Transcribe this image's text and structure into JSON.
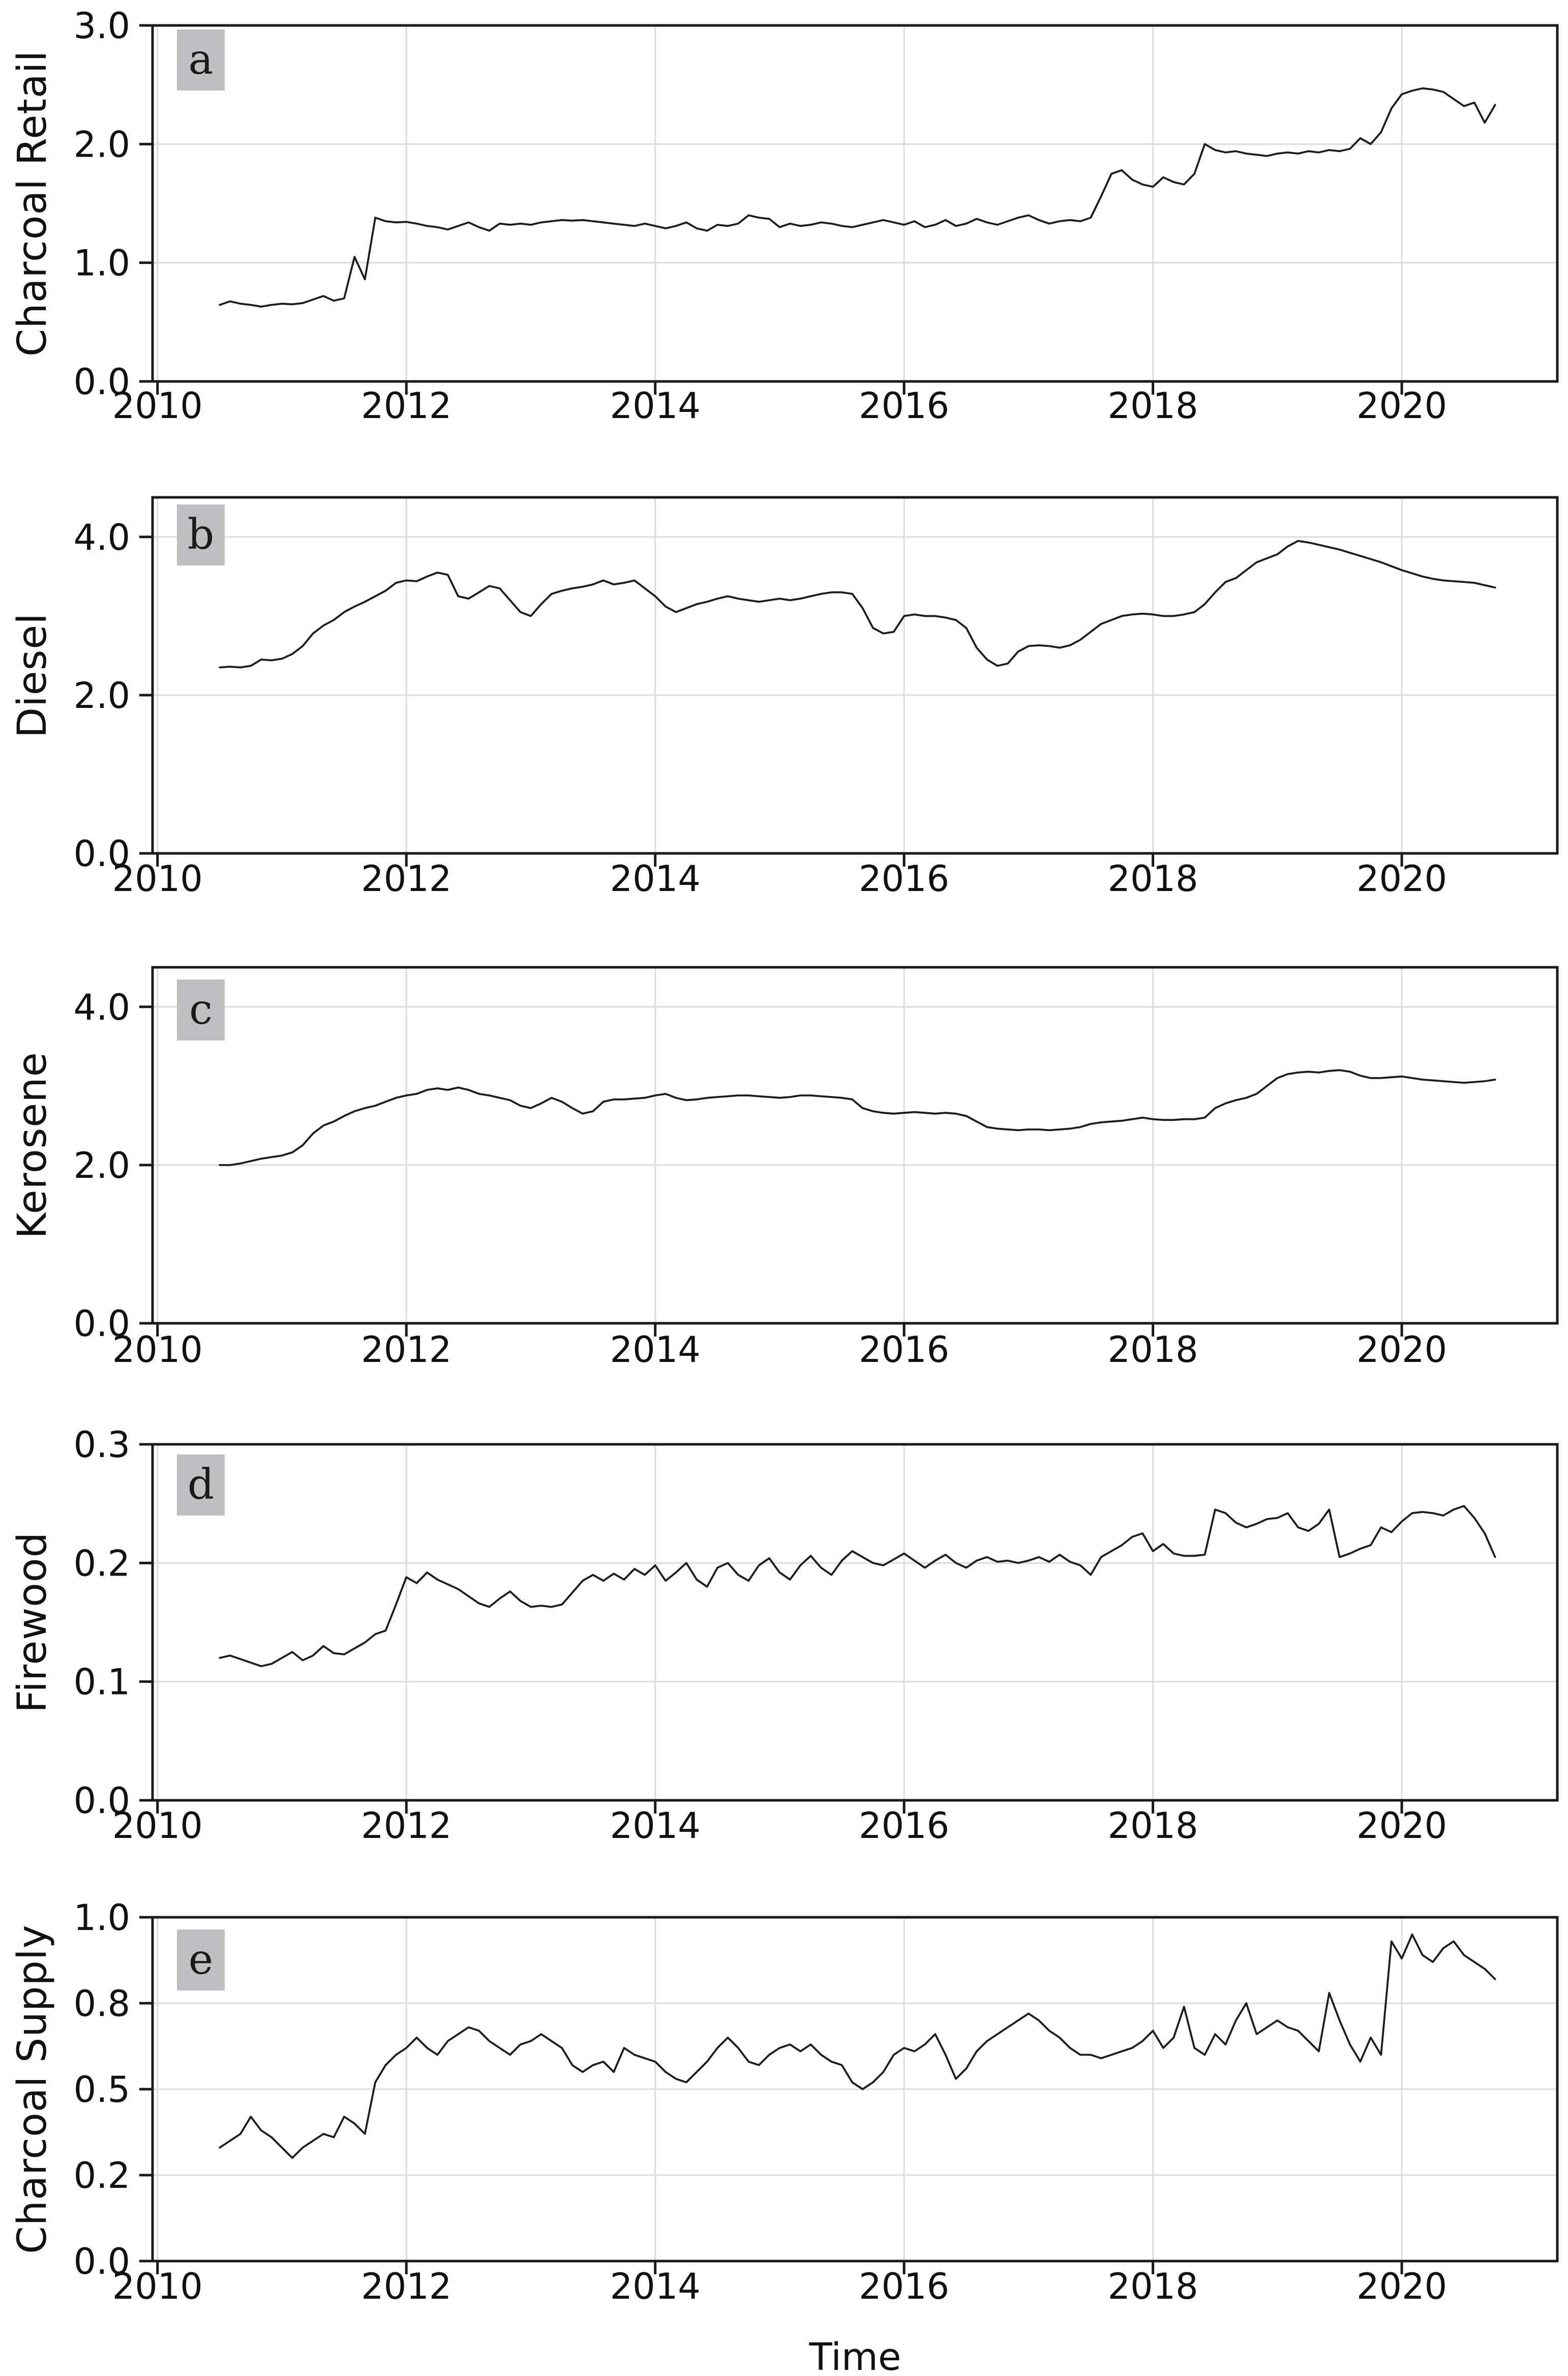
{
  "figure": {
    "background": "#ffffff",
    "line_color": "#1c1c1c",
    "grid_color": "#dcdcdc",
    "spine_color": "#1a1a1a",
    "tick_text_color": "#111111",
    "letter_box_bg": "#bfbfc1",
    "xlabel": "Time",
    "x_ticks": [
      2010,
      2012,
      2014,
      2016,
      2018,
      2020
    ],
    "x_tick_labels": [
      "2010",
      "2012",
      "2014",
      "2016",
      "2018",
      "2020"
    ],
    "x_domain": [
      2009.96,
      2021.25
    ]
  },
  "chart_data": [
    {
      "type": "line",
      "panel_letter": "a",
      "ylabel": "Charcoal Retail",
      "ylim": [
        0,
        3.0
      ],
      "yticks": [
        {
          "v": 0.0,
          "label": "0.0"
        },
        {
          "v": 1.0,
          "label": "1.0"
        },
        {
          "v": 2.0,
          "label": "2.0"
        },
        {
          "v": 3.0,
          "label": "3.0"
        }
      ],
      "x_start": 2010.5,
      "x_step": 0.0833333,
      "values": [
        0.645,
        0.675,
        0.655,
        0.645,
        0.63,
        0.645,
        0.655,
        0.65,
        0.66,
        0.69,
        0.72,
        0.68,
        0.7,
        1.05,
        0.86,
        1.38,
        1.35,
        1.34,
        1.345,
        1.33,
        1.31,
        1.3,
        1.28,
        1.31,
        1.34,
        1.3,
        1.27,
        1.33,
        1.32,
        1.33,
        1.32,
        1.34,
        1.35,
        1.36,
        1.355,
        1.36,
        1.35,
        1.34,
        1.33,
        1.32,
        1.31,
        1.33,
        1.31,
        1.29,
        1.31,
        1.34,
        1.29,
        1.27,
        1.32,
        1.31,
        1.33,
        1.4,
        1.38,
        1.37,
        1.3,
        1.33,
        1.31,
        1.32,
        1.34,
        1.33,
        1.31,
        1.3,
        1.32,
        1.34,
        1.36,
        1.34,
        1.32,
        1.35,
        1.3,
        1.32,
        1.36,
        1.31,
        1.33,
        1.37,
        1.34,
        1.32,
        1.35,
        1.38,
        1.4,
        1.36,
        1.33,
        1.35,
        1.36,
        1.35,
        1.38,
        1.56,
        1.75,
        1.78,
        1.7,
        1.66,
        1.64,
        1.72,
        1.68,
        1.66,
        1.75,
        2.0,
        1.95,
        1.93,
        1.94,
        1.92,
        1.91,
        1.9,
        1.92,
        1.93,
        1.92,
        1.94,
        1.93,
        1.95,
        1.94,
        1.96,
        2.05,
        2.0,
        2.1,
        2.3,
        2.42,
        2.45,
        2.47,
        2.46,
        2.44,
        2.38,
        2.32,
        2.35,
        2.18,
        2.33
      ]
    },
    {
      "type": "line",
      "panel_letter": "b",
      "ylabel": "Diesel",
      "ylim": [
        0,
        4.5
      ],
      "yticks": [
        {
          "v": 0.0,
          "label": "0.0"
        },
        {
          "v": 2.0,
          "label": "2.0"
        },
        {
          "v": 4.0,
          "label": "4.0"
        }
      ],
      "x_start": 2010.5,
      "x_step": 0.0833333,
      "values": [
        2.35,
        2.36,
        2.35,
        2.37,
        2.45,
        2.44,
        2.46,
        2.52,
        2.62,
        2.78,
        2.88,
        2.95,
        3.05,
        3.12,
        3.18,
        3.25,
        3.32,
        3.42,
        3.45,
        3.44,
        3.5,
        3.55,
        3.52,
        3.25,
        3.22,
        3.3,
        3.38,
        3.35,
        3.2,
        3.05,
        3.0,
        3.15,
        3.28,
        3.32,
        3.35,
        3.37,
        3.4,
        3.45,
        3.4,
        3.42,
        3.45,
        3.35,
        3.25,
        3.12,
        3.05,
        3.1,
        3.15,
        3.18,
        3.22,
        3.25,
        3.22,
        3.2,
        3.18,
        3.2,
        3.22,
        3.2,
        3.22,
        3.25,
        3.28,
        3.3,
        3.3,
        3.28,
        3.1,
        2.85,
        2.78,
        2.8,
        3.0,
        3.02,
        3.0,
        3.0,
        2.98,
        2.95,
        2.85,
        2.6,
        2.45,
        2.37,
        2.4,
        2.55,
        2.62,
        2.63,
        2.62,
        2.6,
        2.63,
        2.7,
        2.8,
        2.9,
        2.95,
        3.0,
        3.02,
        3.03,
        3.02,
        3.0,
        3.0,
        3.02,
        3.05,
        3.15,
        3.3,
        3.43,
        3.48,
        3.58,
        3.68,
        3.73,
        3.78,
        3.88,
        3.95,
        3.93,
        3.9,
        3.87,
        3.84,
        3.8,
        3.76,
        3.72,
        3.68,
        3.63,
        3.58,
        3.54,
        3.5,
        3.47,
        3.45,
        3.44,
        3.43,
        3.42,
        3.39,
        3.36
      ]
    },
    {
      "type": "line",
      "panel_letter": "c",
      "ylabel": "Kerosene",
      "ylim": [
        0,
        4.5
      ],
      "yticks": [
        {
          "v": 0.0,
          "label": "0.0"
        },
        {
          "v": 2.0,
          "label": "2.0"
        },
        {
          "v": 4.0,
          "label": "4.0"
        }
      ],
      "x_start": 2010.5,
      "x_step": 0.0833333,
      "values": [
        2.0,
        2.0,
        2.02,
        2.05,
        2.08,
        2.1,
        2.12,
        2.16,
        2.25,
        2.4,
        2.5,
        2.55,
        2.62,
        2.68,
        2.72,
        2.75,
        2.8,
        2.85,
        2.88,
        2.9,
        2.95,
        2.97,
        2.95,
        2.98,
        2.95,
        2.9,
        2.88,
        2.85,
        2.82,
        2.75,
        2.72,
        2.78,
        2.85,
        2.8,
        2.72,
        2.65,
        2.68,
        2.8,
        2.83,
        2.83,
        2.84,
        2.85,
        2.88,
        2.9,
        2.85,
        2.82,
        2.83,
        2.85,
        2.86,
        2.87,
        2.88,
        2.88,
        2.87,
        2.86,
        2.85,
        2.86,
        2.88,
        2.88,
        2.87,
        2.86,
        2.85,
        2.83,
        2.72,
        2.68,
        2.66,
        2.65,
        2.66,
        2.67,
        2.66,
        2.65,
        2.66,
        2.65,
        2.62,
        2.55,
        2.48,
        2.46,
        2.45,
        2.44,
        2.45,
        2.45,
        2.44,
        2.45,
        2.46,
        2.48,
        2.52,
        2.54,
        2.55,
        2.56,
        2.58,
        2.6,
        2.58,
        2.57,
        2.57,
        2.58,
        2.58,
        2.6,
        2.72,
        2.78,
        2.82,
        2.85,
        2.9,
        3.0,
        3.1,
        3.15,
        3.17,
        3.18,
        3.17,
        3.19,
        3.2,
        3.18,
        3.13,
        3.1,
        3.1,
        3.11,
        3.12,
        3.1,
        3.08,
        3.07,
        3.06,
        3.05,
        3.04,
        3.05,
        3.06,
        3.08
      ]
    },
    {
      "type": "line",
      "panel_letter": "d",
      "ylabel": "Firewood",
      "ylim": [
        0,
        0.3
      ],
      "yticks": [
        {
          "v": 0.0,
          "label": "0.0"
        },
        {
          "v": 0.1,
          "label": "0.1"
        },
        {
          "v": 0.2,
          "label": "0.2"
        },
        {
          "v": 0.3,
          "label": "0.3"
        }
      ],
      "x_start": 2010.5,
      "x_step": 0.0833333,
      "values": [
        0.12,
        0.122,
        0.119,
        0.116,
        0.113,
        0.115,
        0.12,
        0.125,
        0.118,
        0.122,
        0.13,
        0.124,
        0.123,
        0.128,
        0.133,
        0.14,
        0.143,
        0.165,
        0.188,
        0.183,
        0.192,
        0.186,
        0.182,
        0.178,
        0.172,
        0.166,
        0.163,
        0.17,
        0.176,
        0.168,
        0.163,
        0.164,
        0.163,
        0.165,
        0.175,
        0.185,
        0.19,
        0.185,
        0.191,
        0.186,
        0.195,
        0.19,
        0.198,
        0.185,
        0.192,
        0.2,
        0.186,
        0.18,
        0.196,
        0.2,
        0.19,
        0.185,
        0.198,
        0.204,
        0.192,
        0.186,
        0.198,
        0.206,
        0.196,
        0.19,
        0.202,
        0.21,
        0.205,
        0.2,
        0.198,
        0.203,
        0.208,
        0.202,
        0.196,
        0.202,
        0.207,
        0.2,
        0.196,
        0.202,
        0.205,
        0.201,
        0.202,
        0.2,
        0.202,
        0.205,
        0.201,
        0.207,
        0.201,
        0.198,
        0.19,
        0.205,
        0.21,
        0.215,
        0.222,
        0.225,
        0.21,
        0.216,
        0.208,
        0.206,
        0.206,
        0.207,
        0.245,
        0.242,
        0.234,
        0.23,
        0.233,
        0.237,
        0.238,
        0.242,
        0.23,
        0.227,
        0.233,
        0.245,
        0.205,
        0.208,
        0.212,
        0.215,
        0.23,
        0.226,
        0.235,
        0.242,
        0.243,
        0.242,
        0.24,
        0.245,
        0.248,
        0.238,
        0.225,
        0.205
      ]
    },
    {
      "type": "line",
      "panel_letter": "e",
      "ylabel": "Charcoal Supply",
      "ylim": [
        0,
        1.0
      ],
      "yticks": [
        {
          "v": 0.0,
          "label": "0.0"
        },
        {
          "v": 0.25,
          "label": "0.2"
        },
        {
          "v": 0.5,
          "label": "0.5"
        },
        {
          "v": 0.75,
          "label": "0.8"
        },
        {
          "v": 1.0,
          "label": "1.0"
        }
      ],
      "x_start": 2010.5,
      "x_step": 0.0833333,
      "values": [
        0.33,
        0.35,
        0.37,
        0.42,
        0.38,
        0.36,
        0.33,
        0.3,
        0.33,
        0.35,
        0.37,
        0.36,
        0.42,
        0.4,
        0.37,
        0.52,
        0.57,
        0.6,
        0.62,
        0.65,
        0.62,
        0.6,
        0.64,
        0.66,
        0.68,
        0.67,
        0.64,
        0.62,
        0.6,
        0.63,
        0.64,
        0.66,
        0.64,
        0.62,
        0.57,
        0.55,
        0.57,
        0.58,
        0.55,
        0.62,
        0.6,
        0.59,
        0.58,
        0.55,
        0.53,
        0.52,
        0.55,
        0.58,
        0.62,
        0.65,
        0.62,
        0.58,
        0.57,
        0.6,
        0.62,
        0.63,
        0.61,
        0.63,
        0.6,
        0.58,
        0.57,
        0.52,
        0.5,
        0.52,
        0.55,
        0.6,
        0.62,
        0.61,
        0.63,
        0.66,
        0.6,
        0.53,
        0.56,
        0.61,
        0.64,
        0.66,
        0.68,
        0.7,
        0.72,
        0.7,
        0.67,
        0.65,
        0.62,
        0.6,
        0.6,
        0.59,
        0.6,
        0.61,
        0.62,
        0.64,
        0.67,
        0.62,
        0.65,
        0.74,
        0.62,
        0.6,
        0.66,
        0.63,
        0.7,
        0.75,
        0.66,
        0.68,
        0.7,
        0.68,
        0.67,
        0.64,
        0.61,
        0.78,
        0.7,
        0.63,
        0.58,
        0.65,
        0.6,
        0.93,
        0.88,
        0.95,
        0.89,
        0.87,
        0.91,
        0.93,
        0.89,
        0.87,
        0.85,
        0.82
      ]
    }
  ]
}
